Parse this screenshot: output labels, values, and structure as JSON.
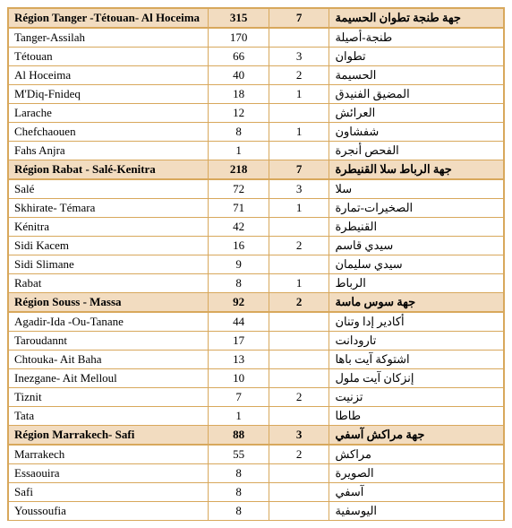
{
  "colors": {
    "border": "#d8a85c",
    "header_bg": "#f2dcc0",
    "text": "#000000",
    "bg": "#ffffff"
  },
  "sections": [
    {
      "fr": "Région Tanger -Tétouan- Al Hoceima",
      "n1": "315",
      "n2": "7",
      "ar": "جهة طنجة تطوان الحسيمة",
      "rows": [
        {
          "fr": "Tanger-Assilah",
          "n1": "170",
          "n2": "",
          "ar": "طنجة-أصيلة"
        },
        {
          "fr": "Tétouan",
          "n1": "66",
          "n2": "3",
          "ar": "تطوان"
        },
        {
          "fr": "Al Hoceima",
          "n1": "40",
          "n2": "2",
          "ar": "الحسيمة"
        },
        {
          "fr": "M'Diq-Fnideq",
          "n1": "18",
          "n2": "1",
          "ar": "المضيق الفنيدق"
        },
        {
          "fr": "Larache",
          "n1": "12",
          "n2": "",
          "ar": "العرائش"
        },
        {
          "fr": "Chefchaouen",
          "n1": "8",
          "n2": "1",
          "ar": "شفشاون"
        },
        {
          "fr": "Fahs Anjra",
          "n1": "1",
          "n2": "",
          "ar": "الفحص أنجرة"
        }
      ]
    },
    {
      "fr": "Région Rabat - Salé-Kenitra",
      "n1": "218",
      "n2": "7",
      "ar": "جهة الرباط سلا القنيطرة",
      "rows": [
        {
          "fr": "Salé",
          "n1": "72",
          "n2": "3",
          "ar": "سلا"
        },
        {
          "fr": "Skhirate- Témara",
          "n1": "71",
          "n2": "1",
          "ar": "الصخيرات-تمارة"
        },
        {
          "fr": "Kénitra",
          "n1": "42",
          "n2": "",
          "ar": "القنيطرة"
        },
        {
          "fr": "Sidi Kacem",
          "n1": "16",
          "n2": "2",
          "ar": "سيدي قاسم"
        },
        {
          "fr": "Sidi Slimane",
          "n1": "9",
          "n2": "",
          "ar": "سيدي سليمان"
        },
        {
          "fr": "Rabat",
          "n1": "8",
          "n2": "1",
          "ar": "الرباط"
        }
      ]
    },
    {
      "fr": "Région Souss - Massa",
      "n1": "92",
      "n2": "2",
      "ar": "جهة سوس ماسة",
      "rows": [
        {
          "fr": "Agadir-Ida -Ou-Tanane",
          "n1": "44",
          "n2": "",
          "ar": "أكادير إدا وتنان"
        },
        {
          "fr": "Taroudannt",
          "n1": "17",
          "n2": "",
          "ar": "تارودانت"
        },
        {
          "fr": "Chtouka- Ait Baha",
          "n1": "13",
          "n2": "",
          "ar": "اشتوكة آيت باها"
        },
        {
          "fr": "Inezgane- Ait Melloul",
          "n1": "10",
          "n2": "",
          "ar": "إنزكان آيت ملول"
        },
        {
          "fr": "Tiznit",
          "n1": "7",
          "n2": "2",
          "ar": "تزنيت"
        },
        {
          "fr": "Tata",
          "n1": "1",
          "n2": "",
          "ar": "طاطا"
        }
      ]
    },
    {
      "fr": "Région Marrakech- Safi",
      "n1": "88",
      "n2": "3",
      "ar": "جهة مراكش آسفي",
      "rows": [
        {
          "fr": "Marrakech",
          "n1": "55",
          "n2": "2",
          "ar": "مراكش"
        },
        {
          "fr": "Essaouira",
          "n1": "8",
          "n2": "",
          "ar": "الصويرة"
        },
        {
          "fr": "Safi",
          "n1": "8",
          "n2": "",
          "ar": "آسفي"
        },
        {
          "fr": "Youssoufia",
          "n1": "8",
          "n2": "",
          "ar": "اليوسفية"
        }
      ]
    }
  ]
}
